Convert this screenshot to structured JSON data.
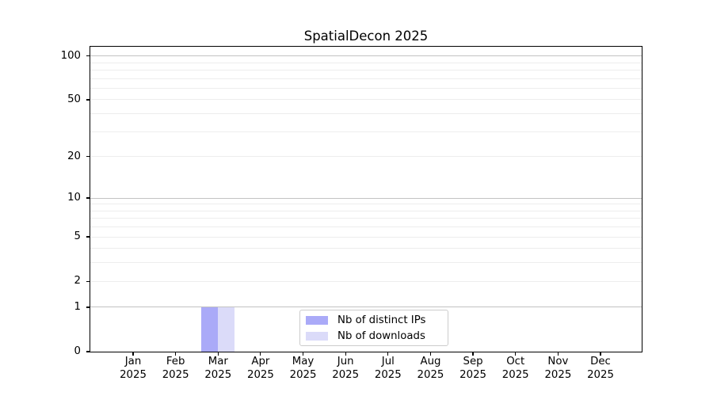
{
  "title": "SpatialDecon 2025",
  "colors": {
    "distinct_ips_bar": "#aaaaf8",
    "downloads_bar": "#dbdbf9",
    "grid_major": "#c2c2c2",
    "grid_minor": "#ededed",
    "axis": "#000000",
    "text": "#000000",
    "legend_border": "#cccccc",
    "background": "#ffffff"
  },
  "chart_data": {
    "type": "bar",
    "title": "SpatialDecon 2025",
    "categories": [
      "Jan 2025",
      "Feb 2025",
      "Mar 2025",
      "Apr 2025",
      "May 2025",
      "Jun 2025",
      "Jul 2025",
      "Aug 2025",
      "Sep 2025",
      "Oct 2025",
      "Nov 2025",
      "Dec 2025"
    ],
    "series": [
      {
        "name": "Nb of distinct IPs",
        "color": "#aaaaf8",
        "values": [
          0,
          0,
          1,
          0,
          0,
          0,
          0,
          0,
          0,
          0,
          0,
          0
        ]
      },
      {
        "name": "Nb of downloads",
        "color": "#dbdbf9",
        "values": [
          0,
          0,
          1,
          0,
          0,
          0,
          0,
          0,
          0,
          0,
          0,
          0
        ]
      }
    ],
    "xlabel": "",
    "ylabel": "",
    "y_scale": "log1p",
    "ylim": [
      0,
      115
    ],
    "y_ticks": [
      0,
      1,
      2,
      5,
      10,
      20,
      50,
      100
    ],
    "y_major_gridlines": [
      1,
      10,
      100
    ],
    "y_minor_gridlines": [
      2,
      3,
      4,
      5,
      6,
      7,
      8,
      9,
      20,
      30,
      40,
      50,
      60,
      70,
      80,
      90
    ],
    "grid": true,
    "legend": {
      "position": "lower center inside plot",
      "items": [
        "Nb of distinct IPs",
        "Nb of downloads"
      ]
    }
  }
}
